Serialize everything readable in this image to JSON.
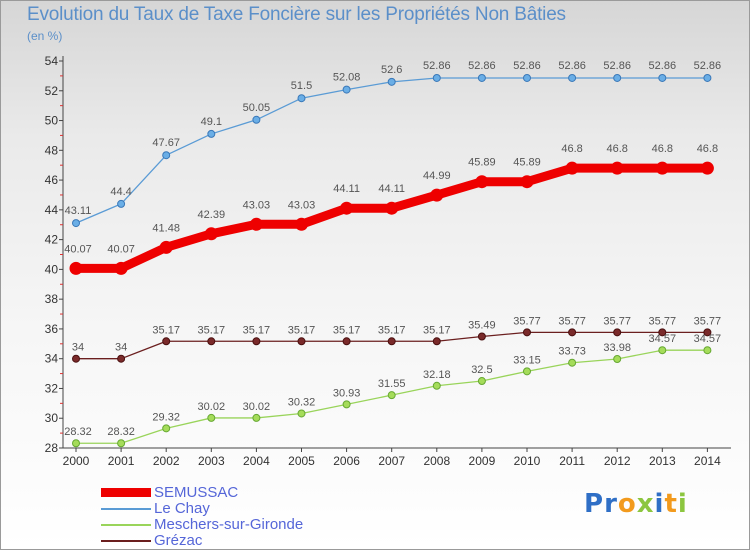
{
  "header": {
    "title": "Evolution du Taux de Taxe Foncière sur les Propriétés Non Bâties",
    "subtitle": "(en %)"
  },
  "colors": {
    "SEMUSSAC": "#ee0000",
    "Le Chay": "#5a9bd5",
    "Meschers-sur-Gironde": "#99d45a",
    "Grézac": "#6b1f1f"
  },
  "chart_data": {
    "type": "line",
    "title": "Evolution du Taux de Taxe Foncière sur les Propriétés Non Bâties",
    "ylabel": "(en %)",
    "xlabel": "",
    "x": [
      "2000",
      "2001",
      "2002",
      "2003",
      "2004",
      "2005",
      "2006",
      "2007",
      "2008",
      "2009",
      "2010",
      "2011",
      "2012",
      "2013",
      "2014"
    ],
    "ylim": [
      28,
      54
    ],
    "yticks": [
      28,
      30,
      32,
      34,
      36,
      38,
      40,
      42,
      44,
      46,
      48,
      50,
      52,
      54
    ],
    "grid": false,
    "legend_position": "bottom-left",
    "series": [
      {
        "name": "SEMUSSAC",
        "values": [
          40.07,
          40.07,
          41.48,
          42.39,
          43.03,
          43.03,
          44.11,
          44.11,
          44.99,
          45.89,
          45.89,
          46.8,
          46.8,
          46.8,
          46.8
        ],
        "labels": [
          "40.07",
          "40.07",
          "41.48",
          "42.39",
          "43.03",
          "43.03",
          "44.11",
          "44.11",
          "44.99",
          "45.89",
          "45.89",
          "46.8",
          "46.8",
          "46.8",
          "46.8"
        ]
      },
      {
        "name": "Le Chay",
        "values": [
          43.11,
          44.4,
          47.67,
          49.1,
          50.05,
          51.5,
          52.08,
          52.6,
          52.86,
          52.86,
          52.86,
          52.86,
          52.86,
          52.86,
          52.86
        ],
        "labels": [
          "43.11",
          "44.4",
          "47.67",
          "49.1",
          "50.05",
          "51.5",
          "52.08",
          "52.6",
          "52.86",
          "52.86",
          "52.86",
          "52.86",
          "52.86",
          "52.86",
          "52.86"
        ]
      },
      {
        "name": "Meschers-sur-Gironde",
        "values": [
          28.32,
          28.32,
          29.32,
          30.02,
          30.02,
          30.32,
          30.93,
          31.55,
          32.18,
          32.5,
          33.15,
          33.73,
          33.98,
          34.57,
          34.57
        ],
        "labels": [
          "28.32",
          "28.32",
          "29.32",
          "30.02",
          "30.02",
          "30.32",
          "30.93",
          "31.55",
          "32.18",
          "32.5",
          "33.15",
          "33.73",
          "33.98",
          "34.57",
          "34.57"
        ]
      },
      {
        "name": "Grézac",
        "values": [
          34,
          34,
          35.17,
          35.17,
          35.17,
          35.17,
          35.17,
          35.17,
          35.17,
          35.49,
          35.77,
          35.77,
          35.77,
          35.77,
          35.77
        ],
        "labels": [
          "34",
          "34",
          "35.17",
          "35.17",
          "35.17",
          "35.17",
          "35.17",
          "35.17",
          "35.17",
          "35.49",
          "35.77",
          "35.77",
          "35.77",
          "35.77",
          "35.77"
        ]
      }
    ]
  },
  "legend": {
    "items": [
      "SEMUSSAC",
      "Le Chay",
      "Meschers-sur-Gironde",
      "Grézac"
    ]
  },
  "logo": {
    "text": "Proxiti",
    "letter_colors": [
      "#2f6fc6",
      "#2f6fc6",
      "#f29a1d",
      "#8cc63f",
      "#2f6fc6",
      "#f29a1d",
      "#8cc63f"
    ]
  }
}
